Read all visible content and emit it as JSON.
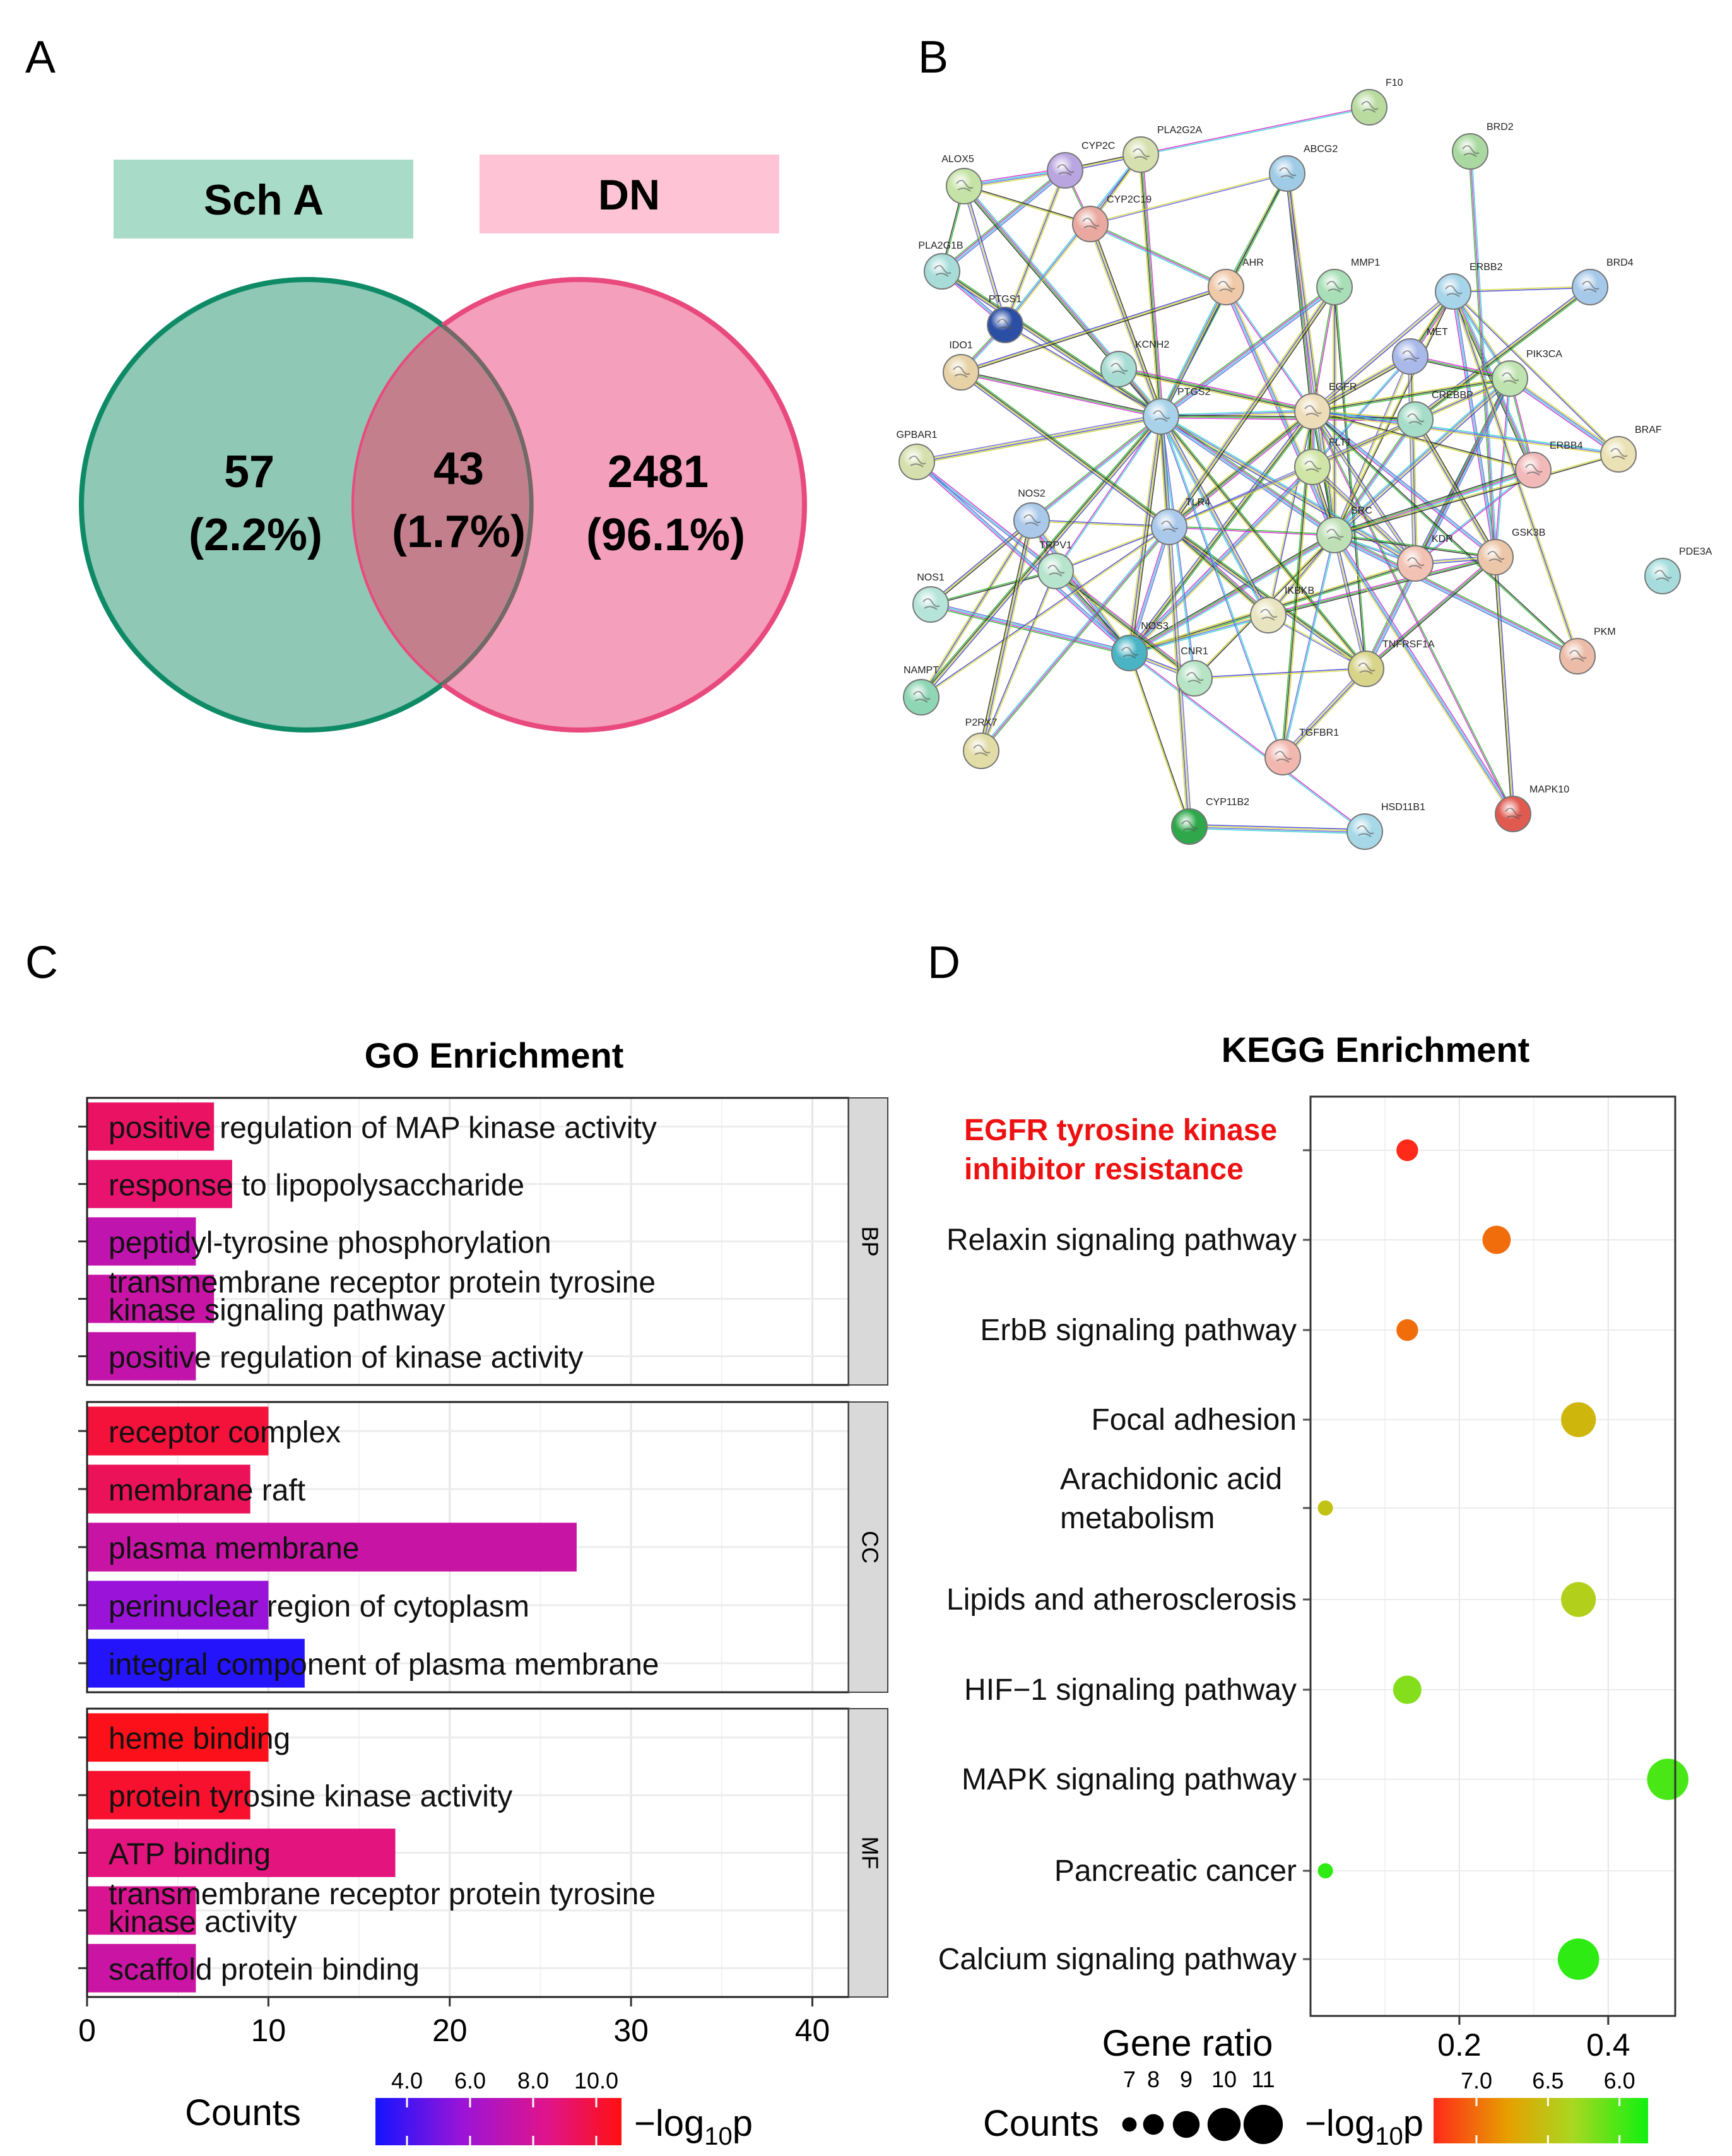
{
  "panels": {
    "A": "A",
    "B": "B",
    "C": "C",
    "D": "D"
  },
  "venn": {
    "left_label": "Sch A",
    "right_label": "DN",
    "left_only": {
      "count": "57",
      "percent": "(2.2%)"
    },
    "overlap": {
      "count": "43",
      "percent": "(1.7%)"
    },
    "right_only": {
      "count": "2481",
      "percent": "(96.1%)"
    },
    "colors": {
      "left_fill": "#8fc8b4",
      "left_stroke": "#0f8a66",
      "right_fill": "#f4a0bc",
      "right_stroke": "#e84a7e",
      "overlap_fill": "#c47f8c",
      "left_box": "#a8dcc9",
      "right_box": "#ffc3d6"
    }
  },
  "network": {
    "nodes": [
      "F10",
      "BRD2",
      "PLA2G2A",
      "CYP2C",
      "ABCG2",
      "ALOX5",
      "CYP2C19",
      "PLA2G1B",
      "AHR",
      "MMP1",
      "ERBB2",
      "BRD4",
      "PTGS1",
      "KCNH2",
      "MET",
      "PIK3CA",
      "IDO1",
      "PTGS2",
      "EGFR",
      "CREBBP",
      "BRAF",
      "GPBAR1",
      "FLT1",
      "ERBB4",
      "NOS2",
      "TLR4",
      "SRC",
      "KDR",
      "GSK3B",
      "PDE3A",
      "TRPV1",
      "NOS1",
      "IKBKB",
      "NOS3",
      "CNR1",
      "TNFRSF1A",
      "PKM",
      "NAMPT",
      "P2RX7",
      "TGFBR1",
      "CYP11B2",
      "HSD11B1",
      "MAPK10"
    ],
    "node_colors": {
      "F10": "#b9dba0",
      "BRD2": "#a9d8a0",
      "PLA2G2A": "#d6dfae",
      "CYP2C": "#b9a6e0",
      "ABCG2": "#9fcbe6",
      "ALOX5": "#c5e3a6",
      "CYP2C19": "#eaa9a0",
      "PLA2G1B": "#a7dcd8",
      "AHR": "#efc9a8",
      "MMP1": "#a9dfb6",
      "ERBB2": "#a6d4ea",
      "BRD4": "#a6c9ea",
      "PTGS1": "#2c4fa6",
      "KCNH2": "#a6dcd2",
      "MET": "#a9b9ea",
      "PIK3CA": "#bfe3b0",
      "IDO1": "#e6d2a6",
      "PTGS2": "#a9d2ea",
      "EGFR": "#eddcb8",
      "CREBBP": "#a6ddc8",
      "BRAF": "#eae1b4",
      "GPBAR1": "#d6e0ae",
      "FLT1": "#cfe5a6",
      "ERBB4": "#f2b9b9",
      "NOS2": "#a9c8ea",
      "TLR4": "#a9c8ea",
      "SRC": "#bfe0b6",
      "KDR": "#f2c2b4",
      "GSK3B": "#ecc6a9",
      "PDE3A": "#a6dcdc",
      "TRPV1": "#b6e4cc",
      "NOS1": "#b6e4d8",
      "IKBKB": "#e8e4c0",
      "NOS3": "#4ab4c4",
      "CNR1": "#b6e4c4",
      "TNFRSF1A": "#d8d48a",
      "PKM": "#ecbca8",
      "NAMPT": "#8ed6b4",
      "P2RX7": "#e2dca6",
      "TGFBR1": "#f2b8b0",
      "CYP11B2": "#2ea84a",
      "HSD11B1": "#a6d8e8",
      "MAPK10": "#e05a50"
    }
  },
  "chart_data": [
    {
      "type": "bar",
      "title": "GO Enrichment",
      "xlabel": "Counts",
      "xlim": [
        0,
        42
      ],
      "xticks": [
        "0",
        "10",
        "20",
        "30",
        "40"
      ],
      "colorbar": {
        "title": "−log",
        "title_sub": "10",
        "title_tail": "p",
        "ticks": [
          "4.0",
          "6.0",
          "8.0",
          "10.0"
        ],
        "range": [
          3.0,
          10.8
        ]
      },
      "groups": [
        {
          "name": "BP",
          "terms": [
            {
              "label": [
                "positive regulation of MAP kinase activity"
              ],
              "count": 7,
              "logp": 9.2
            },
            {
              "label": [
                "response to lipopolysaccharide"
              ],
              "count": 8,
              "logp": 9.0
            },
            {
              "label": [
                "peptidyl-tyrosine phosphorylation"
              ],
              "count": 6,
              "logp": 7.2
            },
            {
              "label": [
                "transmembrane receptor protein tyrosine",
                "kinase signaling pathway"
              ],
              "count": 7,
              "logp": 7.5
            },
            {
              "label": [
                "positive regulation of kinase activity"
              ],
              "count": 6,
              "logp": 7.3
            }
          ]
        },
        {
          "name": "CC",
          "terms": [
            {
              "label": [
                "receptor complex"
              ],
              "count": 10,
              "logp": 10.0
            },
            {
              "label": [
                "membrane raft"
              ],
              "count": 9,
              "logp": 9.4
            },
            {
              "label": [
                "plasma membrane"
              ],
              "count": 27,
              "logp": 7.5
            },
            {
              "label": [
                "perinuclear region of cytoplasm"
              ],
              "count": 10,
              "logp": 5.7
            },
            {
              "label": [
                "integral component of plasma membrane"
              ],
              "count": 12,
              "logp": 3.3
            }
          ]
        },
        {
          "name": "MF",
          "terms": [
            {
              "label": [
                "heme binding"
              ],
              "count": 10,
              "logp": 10.6
            },
            {
              "label": [
                "protein tyrosine kinase activity"
              ],
              "count": 9,
              "logp": 10.2
            },
            {
              "label": [
                "ATP binding"
              ],
              "count": 17,
              "logp": 8.7
            },
            {
              "label": [
                "transmembrane receptor protein tyrosine",
                "kinase activity"
              ],
              "count": 6,
              "logp": 8.2
            },
            {
              "label": [
                "scaffold protein binding"
              ],
              "count": 6,
              "logp": 7.6
            }
          ]
        }
      ]
    },
    {
      "type": "scatter",
      "title": "KEGG Enrichment",
      "xlabel": "Gene ratio",
      "xlim": [
        0.0,
        0.49
      ],
      "xticks": [
        "0.2",
        "0.4"
      ],
      "size_legend": {
        "title": "Counts",
        "values": [
          "7",
          "8",
          "9",
          "10",
          "11"
        ]
      },
      "colorbar": {
        "title": "−log",
        "title_sub": "10",
        "title_tail": "p",
        "ticks": [
          "7.0",
          "6.5",
          "6.0"
        ],
        "range": [
          7.3,
          5.8
        ]
      },
      "highlight_color": "#ee1111",
      "pathways": [
        {
          "label": [
            "EGFR tyrosine kinase",
            "inhibitor resistance"
          ],
          "ratio": 0.13,
          "count": 8,
          "logp": 7.4,
          "highlight": true
        },
        {
          "label": [
            "Relaxin signaling pathway"
          ],
          "ratio": 0.25,
          "count": 9,
          "logp": 7.0
        },
        {
          "label": [
            "ErbB signaling pathway"
          ],
          "ratio": 0.13,
          "count": 8,
          "logp": 7.0
        },
        {
          "label": [
            "Focal adhesion"
          ],
          "ratio": 0.36,
          "count": 10,
          "logp": 6.6
        },
        {
          "label": [
            "Arachidonic acid",
            "metabolism"
          ],
          "ratio": 0.02,
          "count": 7,
          "logp": 6.5
        },
        {
          "label": [
            "Lipids and atherosclerosis"
          ],
          "ratio": 0.36,
          "count": 10,
          "logp": 6.4
        },
        {
          "label": [
            "HIF−1 signaling pathway"
          ],
          "ratio": 0.13,
          "count": 9,
          "logp": 6.2
        },
        {
          "label": [
            "MAPK signaling pathway"
          ],
          "ratio": 0.48,
          "count": 11,
          "logp": 6.0
        },
        {
          "label": [
            "Pancreatic cancer"
          ],
          "ratio": 0.02,
          "count": 7,
          "logp": 5.9
        },
        {
          "label": [
            "Calcium signaling pathway"
          ],
          "ratio": 0.36,
          "count": 11,
          "logp": 5.9
        }
      ]
    }
  ]
}
